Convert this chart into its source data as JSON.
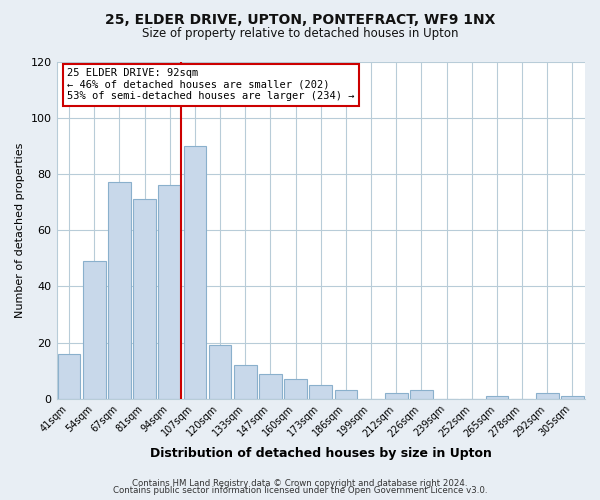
{
  "title": "25, ELDER DRIVE, UPTON, PONTEFRACT, WF9 1NX",
  "subtitle": "Size of property relative to detached houses in Upton",
  "xlabel": "Distribution of detached houses by size in Upton",
  "ylabel": "Number of detached properties",
  "bar_labels": [
    "41sqm",
    "54sqm",
    "67sqm",
    "81sqm",
    "94sqm",
    "107sqm",
    "120sqm",
    "133sqm",
    "147sqm",
    "160sqm",
    "173sqm",
    "186sqm",
    "199sqm",
    "212sqm",
    "226sqm",
    "239sqm",
    "252sqm",
    "265sqm",
    "278sqm",
    "292sqm",
    "305sqm"
  ],
  "bar_values": [
    16,
    49,
    77,
    71,
    76,
    90,
    19,
    12,
    9,
    7,
    5,
    3,
    0,
    2,
    3,
    0,
    0,
    1,
    0,
    2,
    1
  ],
  "bar_color": "#c8d8ea",
  "bar_edge_color": "#8ab0cc",
  "vline_color": "#cc0000",
  "ylim": [
    0,
    120
  ],
  "yticks": [
    0,
    20,
    40,
    60,
    80,
    100,
    120
  ],
  "annotation_title": "25 ELDER DRIVE: 92sqm",
  "annotation_line1": "← 46% of detached houses are smaller (202)",
  "annotation_line2": "53% of semi-detached houses are larger (234) →",
  "annotation_box_color": "#ffffff",
  "annotation_box_edge": "#cc0000",
  "footer_line1": "Contains HM Land Registry data © Crown copyright and database right 2024.",
  "footer_line2": "Contains public sector information licensed under the Open Government Licence v3.0.",
  "background_color": "#e8eef4",
  "plot_background": "#ffffff",
  "grid_color": "#b8ccd8"
}
